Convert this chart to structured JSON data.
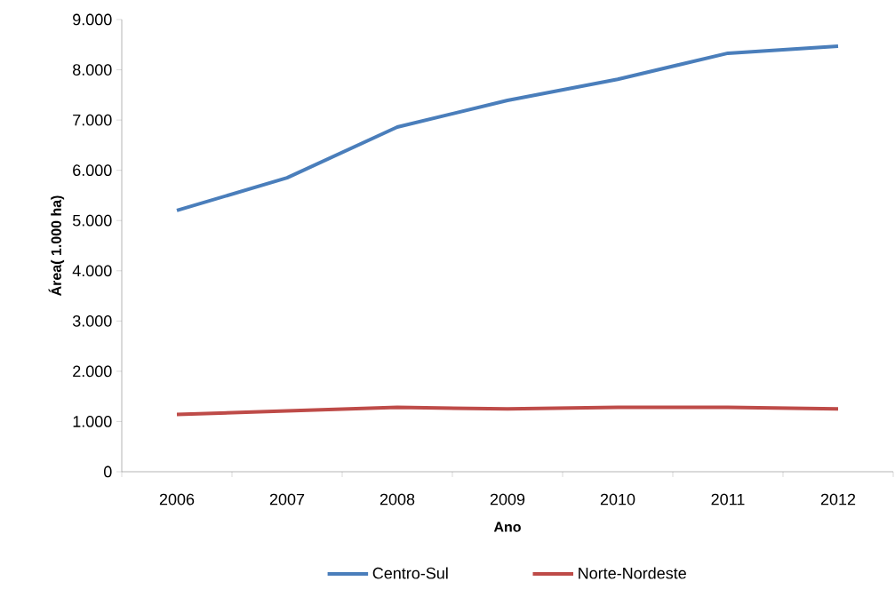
{
  "chart_data": {
    "type": "line",
    "xlabel": "Ano",
    "ylabel": "**Área( 1.000 ha)**",
    "categories": [
      "2006",
      "2007",
      "2008",
      "2009",
      "2010",
      "2011",
      "2012"
    ],
    "series": [
      {
        "name": "Centro-Sul",
        "color": "#4a7ebb",
        "values": [
          5200,
          5850,
          6860,
          7390,
          7810,
          8330,
          8470
        ]
      },
      {
        "name": "Norte-Nordeste",
        "color": "#be4b48",
        "values": [
          1140,
          1210,
          1280,
          1250,
          1280,
          1280,
          1250
        ]
      }
    ],
    "ylim": [
      0,
      9000
    ],
    "yticks": [
      0,
      {
        "value": 1000,
        "label": "1.000"
      },
      {
        "value": 2000,
        "label": "2.000"
      },
      {
        "value": 3000,
        "label": "3.000"
      },
      {
        "value": 4000,
        "label": "4.000"
      },
      {
        "value": 5000,
        "label": "5.000"
      },
      {
        "value": 6000,
        "label": "6.000"
      },
      {
        "value": 7000,
        "label": "7.000"
      },
      {
        "value": 8000,
        "label": "8.000"
      },
      {
        "value": 9000,
        "label": "9.000"
      }
    ],
    "grid": false,
    "legend": "bottom",
    "line_style": "solid"
  }
}
